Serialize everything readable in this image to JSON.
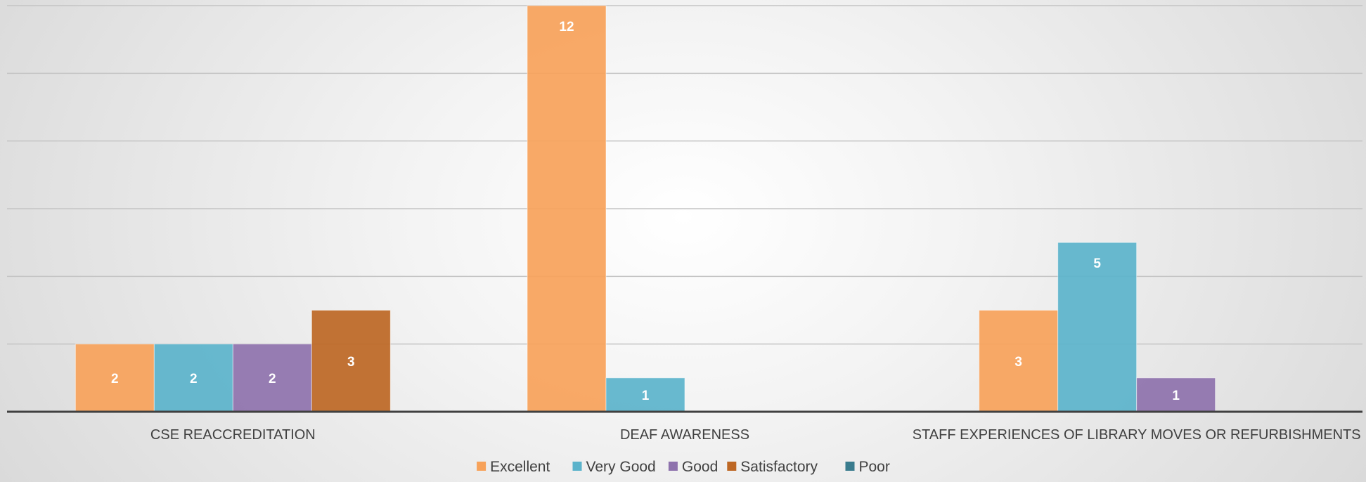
{
  "chart_data": {
    "type": "bar",
    "title": "",
    "xlabel": "",
    "ylabel": "",
    "ylim": [
      0,
      12
    ],
    "grid": true,
    "legend_position": "bottom",
    "categories": [
      "CSE REACCREDITATION",
      "DEAF AWARENESS",
      "STAFF EXPERIENCES OF LIBRARY MOVES OR REFURBISHMENTS"
    ],
    "series": [
      {
        "name": "Excellent",
        "color": "#F7A25A",
        "values": [
          2,
          12,
          3
        ]
      },
      {
        "name": "Very Good",
        "color": "#5BB3CB",
        "values": [
          2,
          1,
          5
        ]
      },
      {
        "name": "Good",
        "color": "#8E72AD",
        "values": [
          2,
          null,
          1
        ]
      },
      {
        "name": "Satisfactory",
        "color": "#BD6724",
        "values": [
          3,
          null,
          null
        ]
      },
      {
        "name": "Poor",
        "color": "#3A7C8E",
        "values": [
          null,
          null,
          null
        ]
      }
    ]
  }
}
